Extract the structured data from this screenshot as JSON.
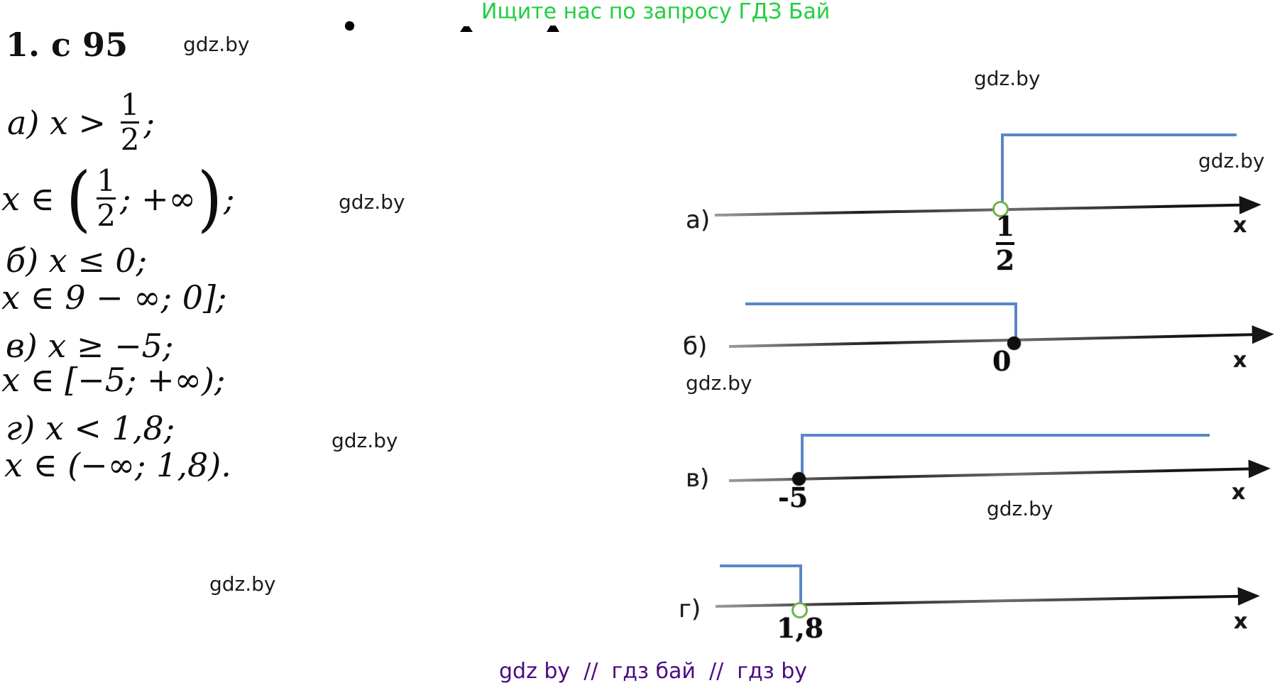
{
  "banner": {
    "text": "Ищите нас по запросу ГДЗ Бай"
  },
  "header": {
    "problem_number": "1. с 95"
  },
  "watermark": {
    "text": "gdz.by"
  },
  "footer": {
    "text": "gdz by  //  гдз бай  //  гдз by"
  },
  "solution": {
    "a_inequality": {
      "pre": "а) x > ",
      "num": "1",
      "den": "2",
      "post": ";"
    },
    "a_interval": {
      "pre": "x ∈ ",
      "open": "(",
      "num": "1",
      "den": "2",
      "mid": "; +∞",
      "close": ")",
      "post": ";"
    },
    "b_inequality": "б) x ≤ 0;",
    "b_interval": "x ∈ 9 − ∞; 0];",
    "v_inequality": "в) x ≥ −5;",
    "v_interval": "x ∈ [−5; +∞);",
    "g_inequality": "г) x < 1,8;",
    "g_interval": "x ∈ (−∞; 1,8)."
  },
  "number_lines": [
    {
      "label": "а)",
      "point": "1/2",
      "point_num": "1",
      "point_den": "2",
      "point_type": "open",
      "axis_label": "x"
    },
    {
      "label": "б)",
      "point": "0",
      "point_type": "closed",
      "axis_label": "x"
    },
    {
      "label": "в)",
      "point": "-5",
      "point_type": "closed",
      "axis_label": "x"
    },
    {
      "label": "г)",
      "point": "1,8",
      "point_type": "open",
      "axis_label": "x"
    }
  ],
  "colors": {
    "banner_green": "#22cf3e",
    "footer_purple": "#4b0a86",
    "bracket_blue": "#5b85c6",
    "open_point_green": "#70b24c",
    "ink": "#111111"
  }
}
